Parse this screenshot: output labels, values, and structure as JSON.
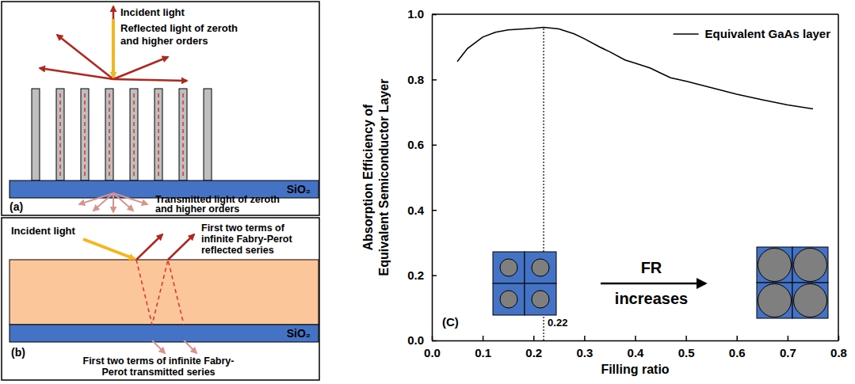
{
  "diagrams": [
    {
      "label": "(a)",
      "incident": "Incident light",
      "reflected": [
        "Reflected light of zeroth",
        "and higher orders"
      ],
      "transmitted": [
        "Transmitted light of zeroth",
        "and higher orders"
      ],
      "substrate": "SiO₂"
    },
    {
      "label": "(b)",
      "incident": "Incident light",
      "reflected": [
        "First two terms of",
        "infinite Fabry-Perot",
        "reflected series"
      ],
      "transmitted": [
        "First two terms of infinite Fabry-",
        "Perot transmitted series"
      ],
      "substrate": "SiO₂"
    }
  ],
  "chart_data": {
    "type": "line",
    "panel_label": "(C)",
    "xlabel": "Filling ratio",
    "ylabel": [
      "Absorption Efficiency of",
      "Equivalent Semiconductor Layer"
    ],
    "x": [
      0.05,
      0.07,
      0.1,
      0.125,
      0.15,
      0.2,
      0.22,
      0.25,
      0.28,
      0.3,
      0.33,
      0.35,
      0.38,
      0.4,
      0.43,
      0.45,
      0.47,
      0.5,
      0.55,
      0.6,
      0.65,
      0.7,
      0.75
    ],
    "series": [
      {
        "name": "Equivalent GaAs layer",
        "color": "#000000",
        "line_style": "solid",
        "values": [
          0.855,
          0.895,
          0.93,
          0.945,
          0.952,
          0.957,
          0.96,
          0.955,
          0.94,
          0.925,
          0.9,
          0.885,
          0.86,
          0.85,
          0.835,
          0.82,
          0.805,
          0.795,
          0.775,
          0.755,
          0.738,
          0.722,
          0.71
        ]
      }
    ],
    "xlim": [
      0,
      0.8
    ],
    "ylim": [
      0,
      1
    ],
    "xticks": [
      {
        "value": 0,
        "label": "0.0"
      },
      0.1,
      0.2,
      0.3,
      0.4,
      0.5,
      0.6,
      0.7,
      0.8
    ],
    "yticks": [
      {
        "value": 0,
        "label": "0.0"
      },
      0.2,
      0.4,
      0.6,
      0.8,
      {
        "value": 1,
        "label": "1.0"
      }
    ],
    "legend": "upper right",
    "annotations": [
      {
        "x": 0.22,
        "y": 0.96,
        "text": "0.22"
      }
    ],
    "inset_label": "FR increases"
  }
}
